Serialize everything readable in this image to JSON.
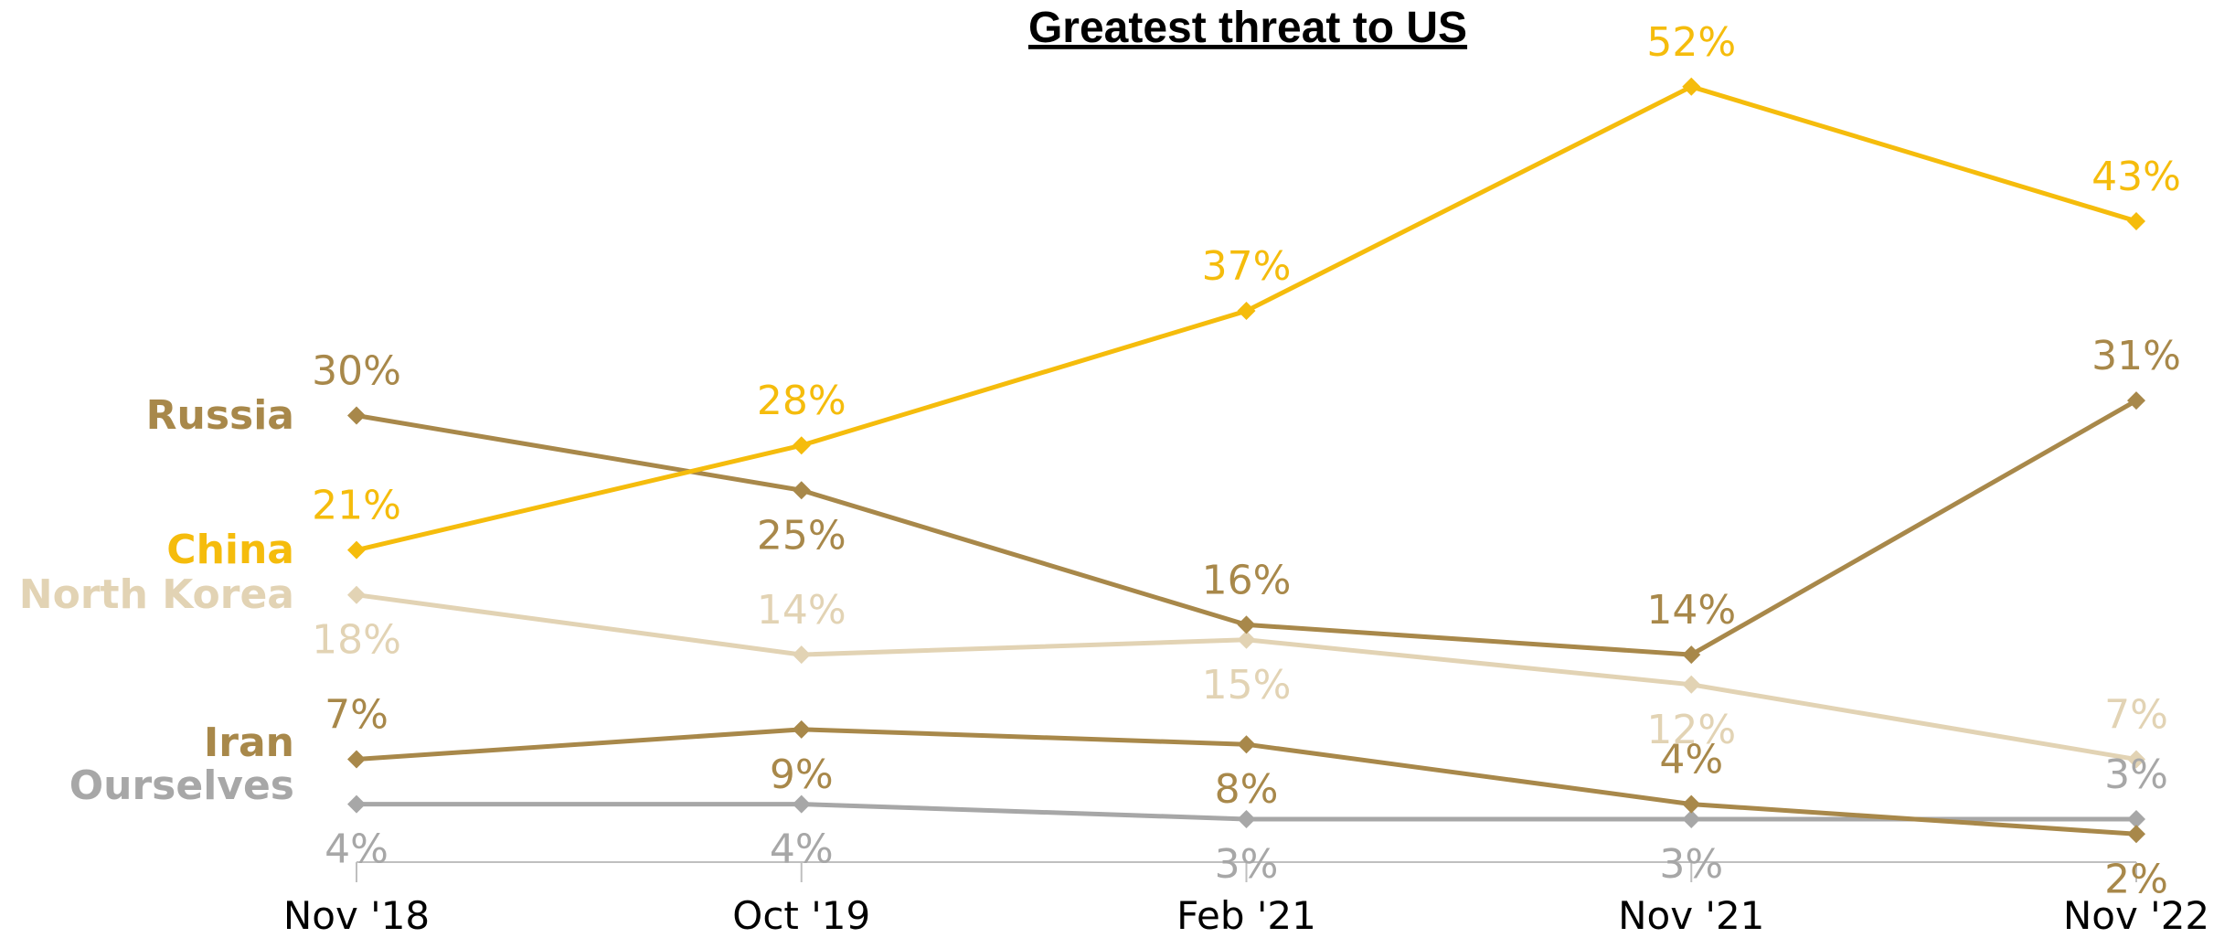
{
  "chart_data": {
    "type": "line",
    "title": "Greatest threat to US",
    "categories": [
      "Nov '18",
      "Oct '19",
      "Feb '21",
      "Nov '21",
      "Nov '22"
    ],
    "ylim": [
      0,
      55
    ],
    "grid": false,
    "legend": "left, inline series labels",
    "series": [
      {
        "name": "Russia",
        "color": "#A8884A",
        "values": [
          30,
          25,
          16,
          14,
          31
        ],
        "labels": [
          "30%",
          "25%",
          "16%",
          "14%",
          "31%"
        ]
      },
      {
        "name": "China",
        "color": "#F5BC0C",
        "values": [
          21,
          28,
          37,
          52,
          43
        ],
        "labels": [
          "21%",
          "28%",
          "37%",
          "52%",
          "43%"
        ]
      },
      {
        "name": "North Korea",
        "color": "#E2D3B4",
        "values": [
          18,
          14,
          15,
          12,
          7
        ],
        "labels": [
          "18%",
          "14%",
          "15%",
          "12%",
          "7%"
        ]
      },
      {
        "name": "Iran",
        "color": "#A8884A",
        "values": [
          7,
          9,
          8,
          4,
          2
        ],
        "labels": [
          "7%",
          "9%",
          "8%",
          "4%",
          "2%"
        ]
      },
      {
        "name": "Ourselves",
        "color": "#A7A7A7",
        "values": [
          4,
          4,
          3,
          3,
          3
        ],
        "labels": [
          "4%",
          "4%",
          "3%",
          "3%",
          "3%"
        ]
      }
    ]
  }
}
